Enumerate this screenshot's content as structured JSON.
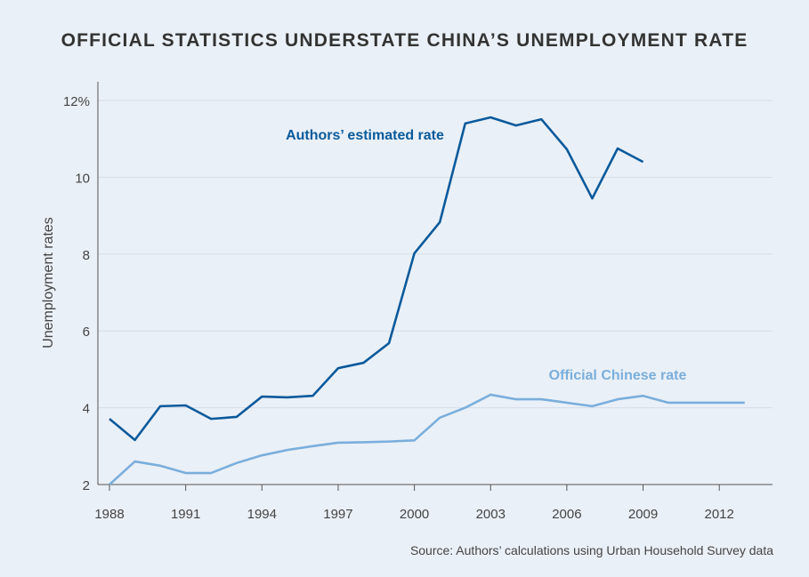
{
  "chart_data": {
    "type": "line",
    "title": "OFFICIAL STATISTICS UNDERSTATE CHINA’S UNEMPLOYMENT RATE",
    "xlabel": "",
    "ylabel": "Unemployment rates",
    "source": "Source: Authors’ calculations using Urban Household Survey data",
    "xlim": [
      1988,
      2014
    ],
    "ylim": [
      2,
      12
    ],
    "x_ticks": [
      "1988",
      "1991",
      "1994",
      "1997",
      "2000",
      "2003",
      "2006",
      "2009",
      "2012"
    ],
    "y_ticks": [
      "2",
      "4",
      "6",
      "8",
      "10",
      "12%"
    ],
    "grid": true,
    "series": [
      {
        "name": "Authors’ estimated rate",
        "color": "#0a5a9c",
        "x": [
          1988,
          1989,
          1990,
          1991,
          1992,
          1993,
          1994,
          1995,
          1996,
          1997,
          1998,
          1999,
          2000,
          2001,
          2002,
          2003,
          2004,
          2005,
          2006,
          2007,
          2008,
          2009
        ],
        "values": [
          3.71,
          3.16,
          4.04,
          4.06,
          3.71,
          3.76,
          4.29,
          4.27,
          4.31,
          5.03,
          5.17,
          5.68,
          8.02,
          8.83,
          11.4,
          11.56,
          11.35,
          11.51,
          10.73,
          9.45,
          10.75,
          10.4
        ]
      },
      {
        "name": "Official Chinese rate",
        "color": "#7aaedc",
        "x": [
          1988,
          1989,
          1990,
          1991,
          1992,
          1993,
          1994,
          1995,
          1996,
          1997,
          1998,
          1999,
          2000,
          2001,
          2002,
          2003,
          2004,
          2005,
          2006,
          2007,
          2008,
          2009,
          2010,
          2011,
          2012,
          2013
        ],
        "values": [
          2.0,
          2.6,
          2.49,
          2.3,
          2.3,
          2.56,
          2.76,
          2.9,
          3.0,
          3.09,
          3.1,
          3.12,
          3.15,
          3.74,
          4.0,
          4.34,
          4.22,
          4.22,
          4.13,
          4.04,
          4.22,
          4.31,
          4.13,
          4.13,
          4.13,
          4.13
        ]
      }
    ]
  }
}
